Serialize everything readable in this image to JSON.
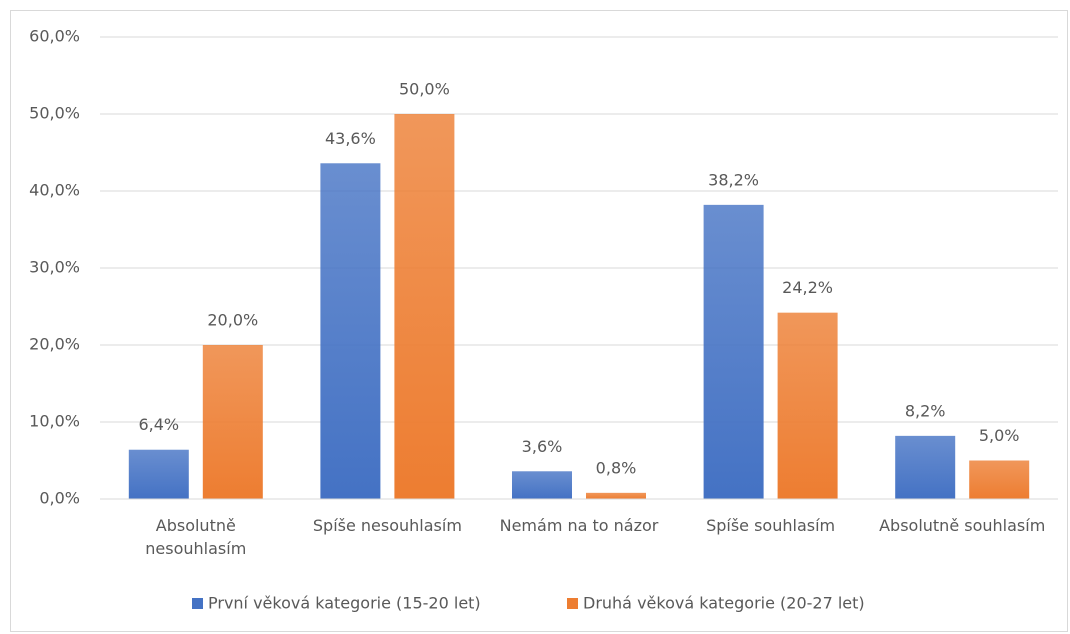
{
  "chart_data": {
    "type": "bar",
    "categories": [
      "Absolutně nesouhlasím",
      "Spíše nesouhlasím",
      "Nemám na to názor",
      "Spíše souhlasím",
      "Absolutně souhlasím"
    ],
    "series": [
      {
        "name": "První věková kategorie (15-20 let)",
        "color": "#4472c4",
        "values": [
          6.4,
          43.6,
          3.6,
          38.2,
          8.2
        ],
        "value_labels": [
          "6,4%",
          "43,6%",
          "3,6%",
          "38,2%",
          "8,2%"
        ]
      },
      {
        "name": "Druhá věková kategorie (20-27 let)",
        "color": "#ed7d31",
        "values": [
          20.0,
          50.0,
          0.8,
          24.2,
          5.0
        ],
        "value_labels": [
          "20,0%",
          "50,0%",
          "0,8%",
          "24,2%",
          "5,0%"
        ]
      }
    ],
    "ylim": [
      0,
      60
    ],
    "yticks": [
      {
        "value": 0,
        "label": "0,0%"
      },
      {
        "value": 10,
        "label": "10,0%"
      },
      {
        "value": 20,
        "label": "20,0%"
      },
      {
        "value": 30,
        "label": "30,0%"
      },
      {
        "value": 40,
        "label": "40,0%"
      },
      {
        "value": 50,
        "label": "50,0%"
      },
      {
        "value": 60,
        "label": "60,0%"
      }
    ],
    "grid": true,
    "legend": "bottom"
  }
}
